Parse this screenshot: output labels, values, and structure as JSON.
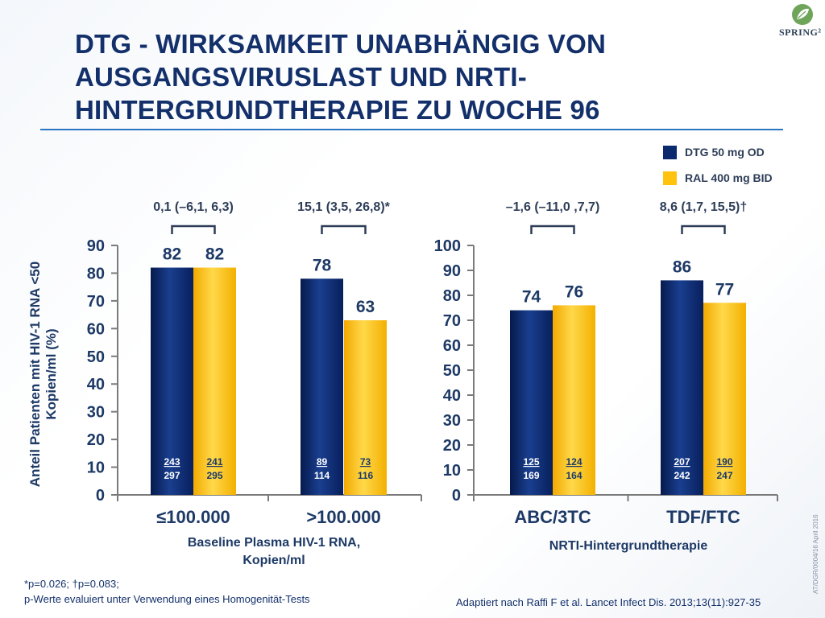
{
  "header": {
    "title": "DTG - WIRKSAMKEIT UNABHÄNGIG VON AUSGANGSVIRUSLAST UND NRTI-HINTERGRUNDTHERAPIE ZU WOCHE 96",
    "logo_text": "SPRING²",
    "logo_icon": "leaf-icon"
  },
  "colors": {
    "dtg": "#0b2a6e",
    "ral": "#ffc20e",
    "text": "#13306b"
  },
  "legend": [
    {
      "label": "DTG 50 mg OD",
      "color": "#0b2a6e"
    },
    {
      "label": "RAL 400 mg BID",
      "color": "#ffc20e"
    }
  ],
  "chart_data": [
    {
      "type": "bar",
      "ylabel": "Anteil Patienten mit HIV-1 RNA <50 Kopien/ml (%)",
      "xlabel": "Baseline Plasma HIV-1 RNA, Kopien/ml",
      "ylim": [
        0,
        90
      ],
      "yticks": [
        0,
        10,
        20,
        30,
        40,
        50,
        60,
        70,
        80,
        90
      ],
      "categories": [
        "≤100.000",
        ">100.000"
      ],
      "series": [
        {
          "name": "DTG 50 mg OD",
          "values": [
            82,
            78
          ],
          "n": [
            "243",
            "89"
          ],
          "N": [
            "297",
            "114"
          ]
        },
        {
          "name": "RAL 400 mg BID",
          "values": [
            82,
            63
          ],
          "n": [
            "241",
            "73"
          ],
          "N": [
            "295",
            "116"
          ]
        }
      ],
      "differences": [
        "0,1 (–6,1, 6,3)",
        "15,1 (3,5, 26,8)*"
      ]
    },
    {
      "type": "bar",
      "xlabel": "NRTI-Hintergrundtherapie",
      "ylim": [
        0,
        100
      ],
      "yticks": [
        0,
        10,
        20,
        30,
        40,
        50,
        60,
        70,
        80,
        90,
        100
      ],
      "categories": [
        "ABC/3TC",
        "TDF/FTC"
      ],
      "series": [
        {
          "name": "DTG 50 mg OD",
          "values": [
            74,
            86
          ],
          "n": [
            "125",
            "207"
          ],
          "N": [
            "169",
            "242"
          ]
        },
        {
          "name": "RAL 400 mg BID",
          "values": [
            76,
            77
          ],
          "n": [
            "124",
            "190"
          ],
          "N": [
            "164",
            "247"
          ]
        }
      ],
      "differences": [
        "–1,6 (–11,0 ,7,7)",
        "8,6 (1,7, 15,5)†"
      ]
    }
  ],
  "footnote": {
    "line1": "*p=0.026; †p=0.083;",
    "line2": "p-Werte evaluiert unter Verwendung eines Homogenität-Tests"
  },
  "source": "Adaptiert nach Raffi F et al. Lancet Infect Dis. 2013;13(11):927-35",
  "side_code": "AT/DGR/0004/16  April 2016"
}
